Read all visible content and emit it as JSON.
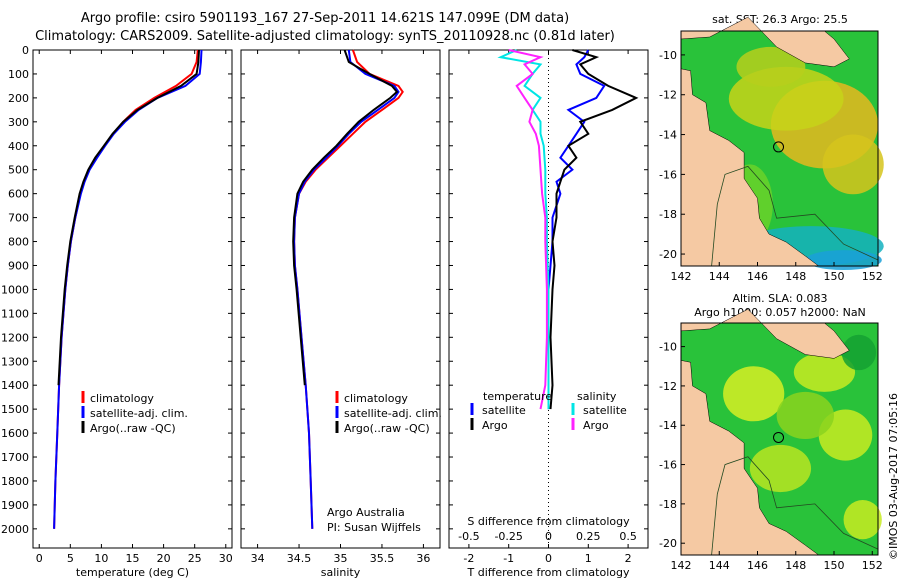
{
  "header": {
    "title_line1": "Argo profile: csiro 5901193_167 27-Sep-2011 14.621S 147.099E (DM data)",
    "title_line2": "Climatology: CARS2009. Satellite-adjusted climatology: synTS_20110928.nc (0.81d later)"
  },
  "colors": {
    "climatology": "#ff0000",
    "satellite": "#0000ff",
    "argo": "#000000",
    "s_satellite": "#00e5e5",
    "s_argo": "#ff22ff",
    "land": "#f5c9a3"
  },
  "chart_data": [
    {
      "type": "line",
      "name": "temperature-profile",
      "xlabel": "temperature (deg C)",
      "ylabel": "",
      "xlim": [
        -1,
        31
      ],
      "ylim": [
        0,
        2080
      ],
      "xticks": [
        0,
        5,
        10,
        15,
        20,
        25,
        30
      ],
      "yticks": [
        0,
        100,
        200,
        300,
        400,
        500,
        600,
        700,
        800,
        900,
        1000,
        1100,
        1200,
        1300,
        1400,
        1500,
        1600,
        1700,
        1800,
        1900,
        2000
      ],
      "legend": [
        "climatology",
        "satellite-adj. clim.",
        "Argo(..raw -QC)"
      ],
      "series": [
        {
          "name": "climatology",
          "color": "#ff0000",
          "depth": [
            0,
            50,
            100,
            150,
            200,
            250,
            300,
            350,
            400,
            450,
            500,
            550,
            600,
            700,
            800,
            900,
            1000,
            1200,
            1400,
            1600,
            1800,
            2000
          ],
          "values": [
            25.5,
            25.3,
            24.5,
            22.0,
            18.5,
            15.5,
            13.5,
            11.9,
            10.5,
            9.2,
            8.0,
            7.2,
            6.6,
            5.8,
            5.1,
            4.6,
            4.2,
            3.6,
            3.2,
            2.9,
            2.6,
            2.4
          ]
        },
        {
          "name": "satellite-adj. clim.",
          "color": "#0000ff",
          "depth": [
            0,
            50,
            100,
            150,
            200,
            250,
            300,
            350,
            400,
            450,
            500,
            550,
            600,
            700,
            800,
            900,
            1000,
            1200,
            1400,
            1600,
            1800,
            2000
          ],
          "values": [
            26.1,
            26.0,
            25.8,
            23.5,
            19.0,
            16.0,
            13.8,
            12.0,
            10.6,
            9.3,
            8.1,
            7.3,
            6.7,
            5.8,
            5.1,
            4.6,
            4.2,
            3.6,
            3.2,
            2.9,
            2.6,
            2.4
          ]
        },
        {
          "name": "Argo",
          "color": "#000000",
          "depth": [
            0,
            50,
            100,
            150,
            200,
            250,
            300,
            350,
            400,
            450,
            500,
            550,
            600,
            700,
            800,
            900,
            1000,
            1200,
            1400
          ],
          "values": [
            25.7,
            25.6,
            25.3,
            22.8,
            19.0,
            15.8,
            13.5,
            11.8,
            10.4,
            9.0,
            7.9,
            7.1,
            6.5,
            5.7,
            5.0,
            4.5,
            4.1,
            3.5,
            3.1
          ]
        }
      ]
    },
    {
      "type": "line",
      "name": "salinity-profile",
      "xlabel": "salinity",
      "xlim": [
        33.8,
        36.2
      ],
      "ylim": [
        0,
        2080
      ],
      "xticks": [
        34,
        34.5,
        35,
        35.5,
        36
      ],
      "legend": [
        "climatology",
        "satellite-adj. clim.",
        "Argo(..raw -QC)"
      ],
      "annotation": [
        "Argo Australia",
        "PI: Susan Wijffels"
      ],
      "series": [
        {
          "name": "climatology",
          "color": "#ff0000",
          "depth": [
            0,
            50,
            100,
            150,
            175,
            200,
            250,
            300,
            350,
            400,
            450,
            500,
            550,
            600,
            700,
            800,
            900,
            1000,
            1200,
            1400,
            1600,
            1800,
            2000
          ],
          "values": [
            35.15,
            35.2,
            35.35,
            35.7,
            35.75,
            35.7,
            35.5,
            35.3,
            35.15,
            35.0,
            34.85,
            34.7,
            34.58,
            34.5,
            34.45,
            34.44,
            34.45,
            34.48,
            34.53,
            34.58,
            34.62,
            34.64,
            34.66
          ]
        },
        {
          "name": "satellite-adj. clim.",
          "color": "#0000ff",
          "depth": [
            0,
            50,
            100,
            150,
            175,
            200,
            250,
            300,
            350,
            400,
            450,
            500,
            550,
            600,
            700,
            800,
            900,
            1000,
            1200,
            1400,
            1600,
            1800,
            2000
          ],
          "values": [
            35.1,
            35.12,
            35.3,
            35.65,
            35.7,
            35.65,
            35.45,
            35.25,
            35.1,
            34.97,
            34.83,
            34.68,
            34.57,
            34.5,
            34.45,
            34.44,
            34.45,
            34.48,
            34.53,
            34.58,
            34.62,
            34.64,
            34.66
          ]
        },
        {
          "name": "Argo",
          "color": "#000000",
          "depth": [
            0,
            50,
            80,
            100,
            150,
            175,
            200,
            250,
            300,
            350,
            400,
            450,
            500,
            550,
            600,
            700,
            800,
            900,
            1000,
            1200,
            1400
          ],
          "values": [
            35.05,
            35.1,
            35.25,
            35.35,
            35.62,
            35.68,
            35.6,
            35.4,
            35.22,
            35.08,
            34.95,
            34.8,
            34.66,
            34.55,
            34.48,
            34.44,
            34.43,
            34.44,
            34.47,
            34.52,
            34.57
          ]
        }
      ]
    },
    {
      "type": "line",
      "name": "difference-profile",
      "xlabel": "T difference from climatology",
      "xlabel2": "S difference from climatology",
      "xlim": [
        -2.5,
        2.5
      ],
      "ylim": [
        0,
        2080
      ],
      "xticks": [
        -2,
        -1,
        0,
        1,
        2
      ],
      "xticks_s": [
        -0.5,
        -0.25,
        0,
        0.25,
        0.5
      ],
      "legend_t_title": "temperature",
      "legend_s_title": "salinity",
      "legend_labels": [
        "satellite",
        "Argo",
        "satellite",
        "Argo"
      ],
      "series": [
        {
          "name": "T satellite",
          "color": "#0000ff",
          "depth": [
            0,
            30,
            60,
            100,
            150,
            200,
            250,
            300,
            350,
            400,
            450,
            500,
            550,
            600,
            700,
            800,
            900,
            1000,
            1200,
            1400,
            1500
          ],
          "values": [
            1.0,
            0.9,
            0.7,
            0.8,
            1.4,
            1.2,
            0.5,
            0.9,
            0.7,
            0.5,
            0.3,
            0.6,
            0.2,
            0.3,
            0.1,
            0.1,
            0.05,
            0.0,
            0.0,
            0.0,
            0.0
          ]
        },
        {
          "name": "T Argo",
          "color": "#000000",
          "depth": [
            0,
            30,
            60,
            100,
            150,
            200,
            250,
            300,
            350,
            400,
            450,
            500,
            550,
            600,
            700,
            800,
            900,
            1000,
            1200,
            1400,
            1500
          ],
          "values": [
            0.6,
            1.2,
            0.8,
            1.0,
            1.5,
            2.2,
            1.6,
            0.8,
            1.0,
            0.5,
            0.7,
            0.4,
            0.3,
            0.2,
            0.2,
            0.1,
            0.15,
            0.1,
            0.05,
            0.1,
            0.05
          ]
        },
        {
          "name": "S satellite",
          "color": "#00e5e5",
          "depth": [
            0,
            30,
            60,
            100,
            150,
            200,
            250,
            300,
            350,
            400,
            500,
            600,
            700,
            800,
            1000,
            1200,
            1400,
            1500
          ],
          "values": [
            -0.2,
            -0.3,
            -0.05,
            -0.1,
            -0.15,
            -0.05,
            -0.1,
            -0.05,
            -0.05,
            -0.03,
            -0.02,
            -0.02,
            -0.01,
            -0.01,
            0.0,
            0.0,
            0.0,
            0.0
          ]
        },
        {
          "name": "S Argo",
          "color": "#ff22ff",
          "depth": [
            0,
            30,
            60,
            100,
            150,
            200,
            250,
            300,
            350,
            400,
            500,
            600,
            700,
            800,
            1000,
            1200,
            1400,
            1500
          ],
          "values": [
            -0.25,
            -0.05,
            -0.15,
            -0.1,
            -0.2,
            -0.15,
            -0.1,
            -0.12,
            -0.08,
            -0.06,
            -0.05,
            -0.04,
            -0.02,
            -0.02,
            -0.01,
            -0.01,
            -0.02,
            -0.05
          ]
        }
      ]
    },
    {
      "type": "heatmap",
      "name": "sst-map",
      "title": "sat. SST: 26.3 Argo: 25.5",
      "xlim": [
        142,
        152.3
      ],
      "ylim": [
        -20.6,
        -8.8
      ],
      "xticks": [
        142,
        144,
        146,
        148,
        150,
        152
      ],
      "yticks": [
        -10,
        -12,
        -14,
        -16,
        -18,
        -20
      ],
      "argo_position": {
        "lon": 147.099,
        "lat": -14.621
      }
    },
    {
      "type": "heatmap",
      "name": "sla-map",
      "title_line1": "Altim. SLA: 0.083",
      "title_line2": "Argo h1000: 0.057 h2000: NaN",
      "xlim": [
        142,
        152.3
      ],
      "ylim": [
        -20.6,
        -8.8
      ],
      "xticks": [
        142,
        144,
        146,
        148,
        150,
        152
      ],
      "yticks": [
        -10,
        -12,
        -14,
        -16,
        -18,
        -20
      ],
      "argo_position": {
        "lon": 147.099,
        "lat": -14.621
      }
    }
  ],
  "credit": "©IMOS 03-Aug-2017 07:05:16"
}
